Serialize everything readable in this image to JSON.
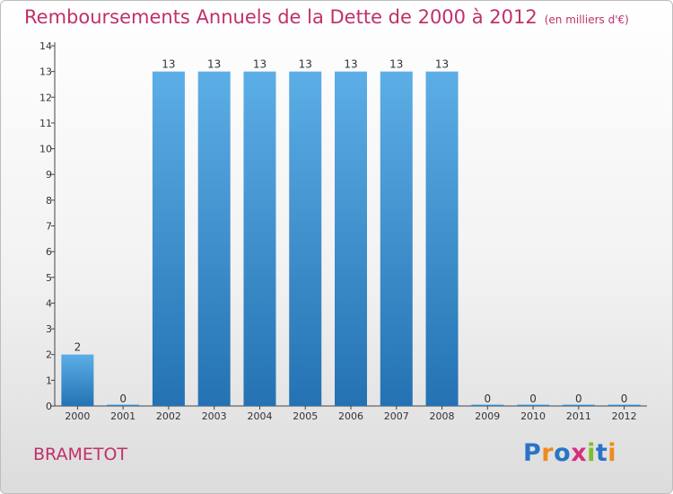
{
  "title": "Remboursements Annuels de la Dette de 2000 à 2012",
  "unit_note": "(en milliers d'€)",
  "commune": "BRAMETOT",
  "brand": {
    "letters": [
      "P",
      "r",
      "o",
      "x",
      "i",
      "t",
      "i"
    ],
    "colors": [
      "#2a73c6",
      "#f08a1c",
      "#2a73c6",
      "#d62f7e",
      "#7bbf2a",
      "#2a73c6",
      "#f08a1c"
    ]
  },
  "colors": {
    "bar_top": "#5caee6",
    "bar_bottom": "#2472b3",
    "title": "#c0306a"
  },
  "chart_data": {
    "type": "bar",
    "title": "Remboursements Annuels de la Dette de 2000 à 2012",
    "categories": [
      "2000",
      "2001",
      "2002",
      "2003",
      "2004",
      "2005",
      "2006",
      "2007",
      "2008",
      "2009",
      "2010",
      "2011",
      "2012"
    ],
    "values": [
      2,
      0,
      13,
      13,
      13,
      13,
      13,
      13,
      13,
      0,
      0,
      0,
      0
    ],
    "data_labels": [
      "2",
      "0",
      "13",
      "13",
      "13",
      "13",
      "13",
      "13",
      "13",
      "0",
      "0",
      "0",
      "0"
    ],
    "ylim": [
      0,
      14
    ],
    "yticks": [
      0,
      1,
      2,
      3,
      4,
      5,
      6,
      7,
      8,
      9,
      10,
      11,
      12,
      13,
      14
    ],
    "grid": false,
    "legend": "none"
  }
}
